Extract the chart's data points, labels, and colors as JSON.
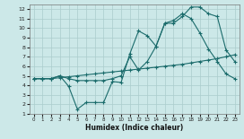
{
  "xlabel": "Humidex (Indice chaleur)",
  "bg_color": "#cce8e8",
  "grid_color": "#aacccc",
  "line_color": "#1a6b6b",
  "xlim": [
    -0.5,
    23.5
  ],
  "ylim": [
    1,
    12.5
  ],
  "xticks": [
    0,
    1,
    2,
    3,
    4,
    5,
    6,
    7,
    8,
    9,
    10,
    11,
    12,
    13,
    14,
    15,
    16,
    17,
    18,
    19,
    20,
    21,
    22,
    23
  ],
  "yticks": [
    1,
    2,
    3,
    4,
    5,
    6,
    7,
    8,
    9,
    10,
    11,
    12
  ],
  "line1_x": [
    0,
    1,
    2,
    3,
    4,
    5,
    6,
    7,
    8,
    9,
    10,
    11,
    12,
    13,
    14,
    15,
    16,
    17,
    18,
    19,
    20,
    21,
    22,
    23
  ],
  "line1_y": [
    4.7,
    4.7,
    4.7,
    4.8,
    4.9,
    5.0,
    5.1,
    5.2,
    5.3,
    5.4,
    5.5,
    5.6,
    5.7,
    5.8,
    5.9,
    6.0,
    6.1,
    6.2,
    6.35,
    6.5,
    6.65,
    6.8,
    7.0,
    7.2
  ],
  "line2_x": [
    0,
    1,
    2,
    3,
    4,
    5,
    6,
    7,
    8,
    9,
    10,
    11,
    12,
    13,
    14,
    15,
    16,
    17,
    18,
    19,
    20,
    21,
    22,
    23
  ],
  "line2_y": [
    4.7,
    4.7,
    4.7,
    5.0,
    3.9,
    1.5,
    2.2,
    2.2,
    2.2,
    4.4,
    4.3,
    7.3,
    9.7,
    9.2,
    8.1,
    10.5,
    10.8,
    11.5,
    11.0,
    9.5,
    7.8,
    6.5,
    5.2,
    4.7
  ],
  "line3_x": [
    0,
    1,
    2,
    3,
    4,
    5,
    6,
    7,
    8,
    9,
    10,
    11,
    12,
    13,
    14,
    15,
    16,
    17,
    18,
    19,
    20,
    21,
    22,
    23
  ],
  "line3_y": [
    4.7,
    4.7,
    4.7,
    5.0,
    4.7,
    4.5,
    4.5,
    4.5,
    4.5,
    4.7,
    5.0,
    7.0,
    5.6,
    6.5,
    8.1,
    10.5,
    10.5,
    11.2,
    12.2,
    12.2,
    11.5,
    11.2,
    7.7,
    6.5
  ]
}
